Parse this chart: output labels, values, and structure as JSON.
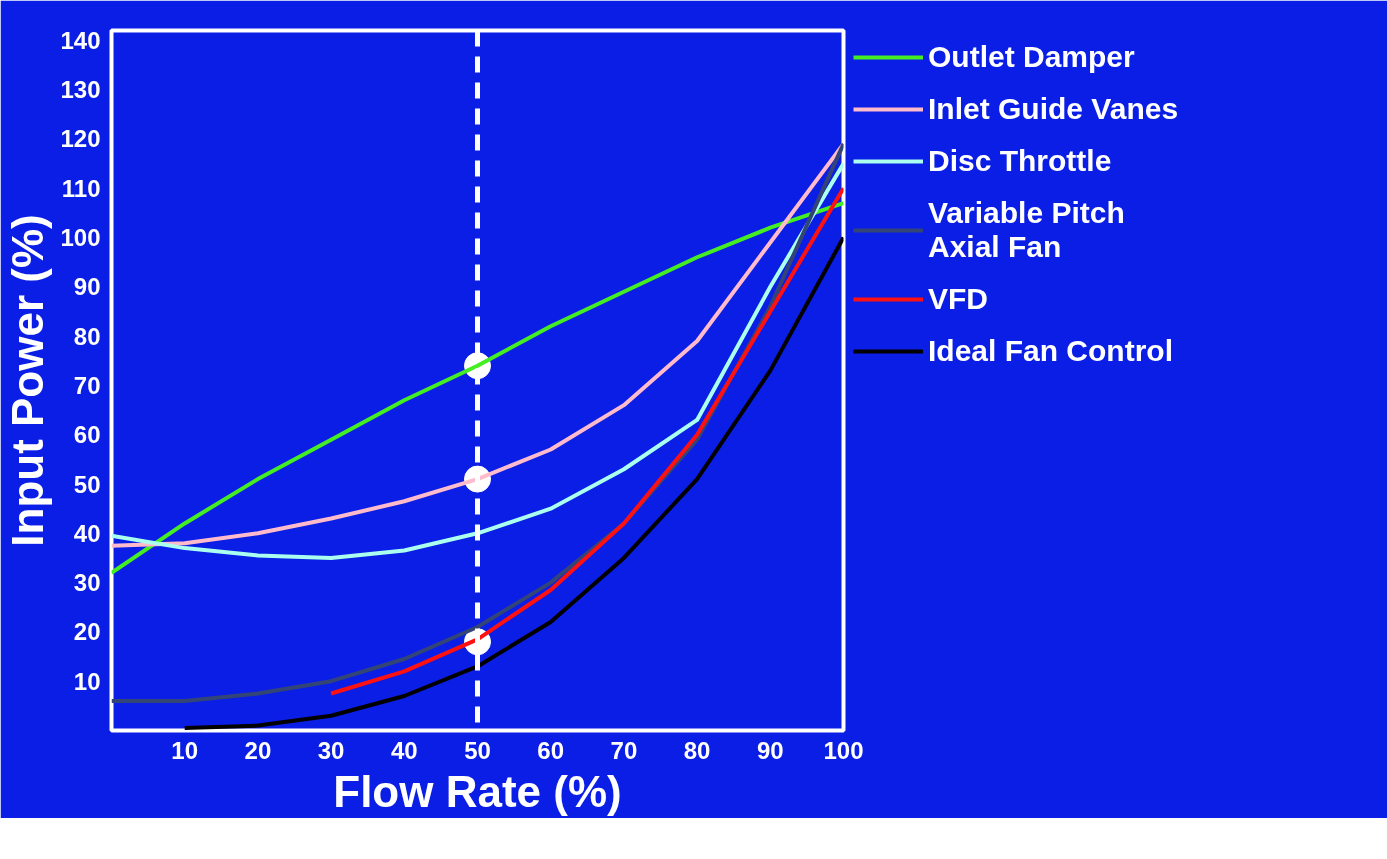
{
  "chart_data": {
    "type": "line",
    "xlabel": "Flow Rate (%)",
    "ylabel": "Input Power (%)",
    "xlim": [
      0,
      100
    ],
    "ylim": [
      0,
      142
    ],
    "xticks": [
      10,
      20,
      30,
      40,
      50,
      60,
      70,
      80,
      90,
      100
    ],
    "yticks": [
      10,
      20,
      30,
      40,
      50,
      60,
      70,
      80,
      90,
      100,
      110,
      120,
      130,
      140
    ],
    "grid": false,
    "legend": "right",
    "line_style": "solid",
    "ref_lines": [
      {
        "axis": "x",
        "value": 50,
        "color": "#ffffff",
        "line_style": "dashed"
      }
    ],
    "series": [
      {
        "name": "Outlet Damper",
        "color": "#44ee22",
        "x": [
          0,
          10,
          20,
          30,
          40,
          50,
          60,
          70,
          80,
          90,
          100
        ],
        "values": [
          32,
          42,
          51,
          59,
          67,
          74,
          82,
          89,
          96,
          102,
          107
        ]
      },
      {
        "name": "Inlet Guide Vanes",
        "color": "#ffbbcc",
        "x": [
          0,
          10,
          20,
          30,
          40,
          50,
          60,
          70,
          80,
          90,
          100
        ],
        "values": [
          37.5,
          38,
          40,
          43,
          46.5,
          51,
          57,
          66,
          79,
          99,
          119
        ]
      },
      {
        "name": "Disc Throttle",
        "color": "#aaffee",
        "x": [
          0,
          10,
          20,
          30,
          40,
          50,
          60,
          70,
          80,
          90,
          100
        ],
        "values": [
          39.5,
          37,
          35.5,
          35,
          36.5,
          40,
          45,
          53,
          63,
          90,
          115
        ]
      },
      {
        "name": "Variable Pitch Axial Fan",
        "color": "#334477",
        "x": [
          0,
          10,
          20,
          30,
          40,
          50,
          60,
          70,
          80,
          90,
          100
        ],
        "values": [
          6,
          6,
          7.5,
          10,
          14.5,
          21,
          30,
          42,
          59,
          86,
          119
        ]
      },
      {
        "name": "VFD",
        "color": "#ff1111",
        "x": [
          30,
          40,
          50,
          60,
          70,
          80,
          90,
          100
        ],
        "values": [
          7.5,
          12,
          18.5,
          28.5,
          42,
          60,
          85,
          110
        ]
      },
      {
        "name": "Ideal Fan Control",
        "color": "#000000",
        "x": [
          10,
          20,
          30,
          40,
          50,
          60,
          70,
          80,
          90,
          100
        ],
        "values": [
          0.5,
          1,
          3,
          7,
          13,
          22,
          35,
          51,
          73,
          100
        ]
      },
      {
        "type": "scatter",
        "marker": "circle",
        "color": "#ffffff",
        "x": [
          50,
          50,
          50
        ],
        "values": [
          74,
          51,
          18
        ]
      }
    ]
  }
}
